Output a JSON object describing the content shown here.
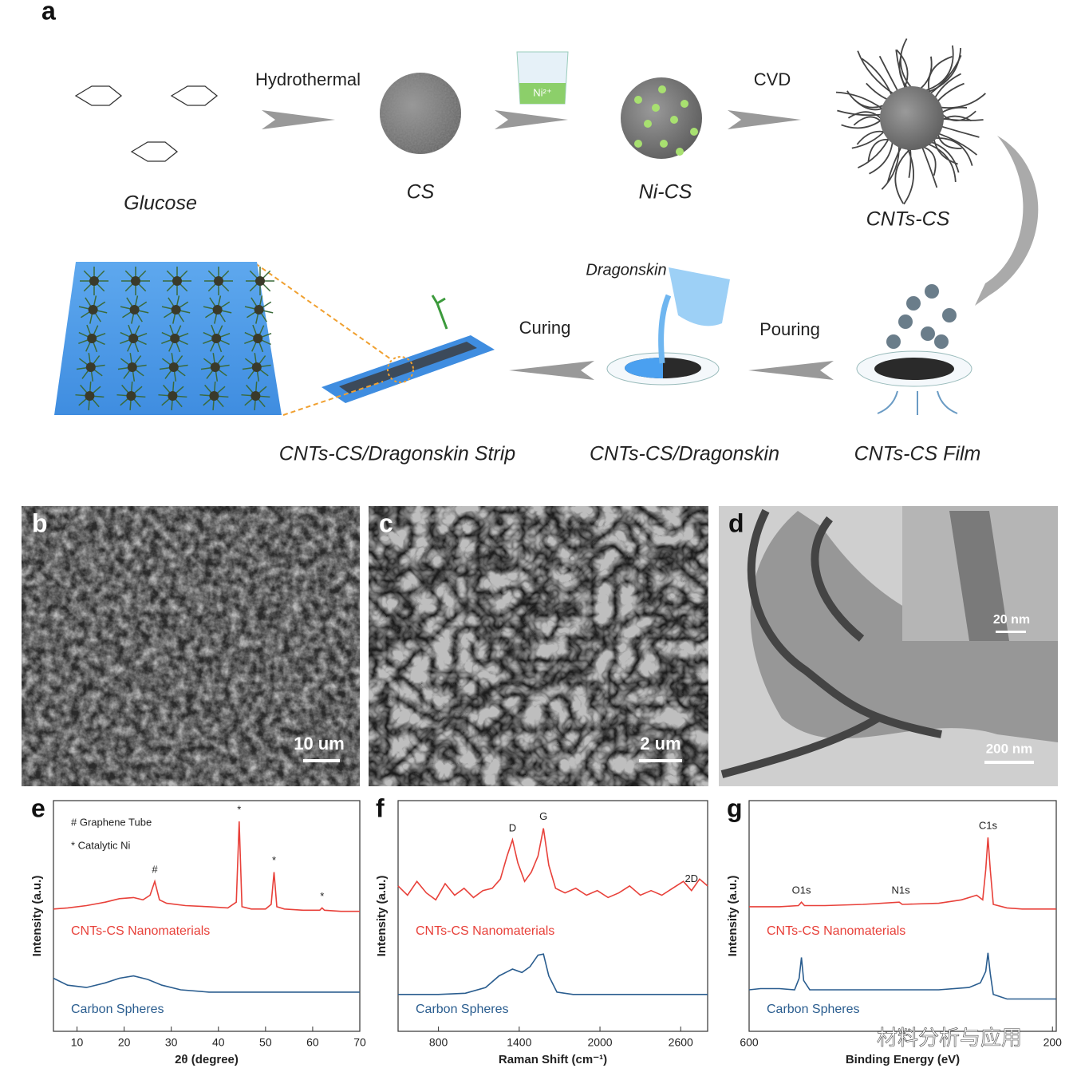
{
  "panel_a": {
    "label": "a",
    "glucose": "Glucose",
    "hydrothermal": "Hydrothermal",
    "cs": "CS",
    "ni_ion": "Ni²⁺",
    "ni_cs": "Ni-CS",
    "cvd": "CVD",
    "cnts_cs": "CNTs-CS",
    "cnts_cs_film": "CNTs-CS Film",
    "pouring": "Pouring",
    "dragonskin": "Dragonskin",
    "composite": "CNTs-CS/Dragonskin",
    "curing": "Curing",
    "strip": "CNTs-CS/Dragonskin Strip"
  },
  "micrographs": [
    {
      "label": "b",
      "scale_bar": "10 um"
    },
    {
      "label": "c",
      "scale_bar": "2 um"
    },
    {
      "label": "d",
      "scale_bar": "200 nm",
      "inset_scale_bar": "20 nm"
    }
  ],
  "watermark": "材料分析与应用",
  "chart_data": [
    {
      "type": "line",
      "panel": "e",
      "xlabel": "2θ (degree)",
      "ylabel": "Intensity (a.u.)",
      "xlim": [
        5,
        70
      ],
      "xticks": [
        10,
        20,
        30,
        40,
        50,
        60,
        70
      ],
      "ylim": [
        0,
        10
      ],
      "legend_notes": [
        "# Graphene Tube",
        "* Catalytic Ni"
      ],
      "annotations": [
        {
          "text": "#",
          "x": 26.5
        },
        {
          "text": "*",
          "x": 44.4
        },
        {
          "text": "*",
          "x": 51.8
        },
        {
          "text": "*",
          "x": 62
        }
      ],
      "series": [
        {
          "name": "CNTs-CS Nanomaterials",
          "color": "#e8413a",
          "x": [
            5,
            8,
            12,
            16,
            19,
            22,
            24,
            25.5,
            26.5,
            27.5,
            29,
            33,
            38,
            42,
            43.8,
            44.4,
            45,
            47,
            50,
            51.2,
            51.8,
            52.4,
            54,
            58,
            61.5,
            62,
            62.5,
            66,
            70
          ],
          "values": [
            5.3,
            5.35,
            5.45,
            5.6,
            5.75,
            5.8,
            5.7,
            5.9,
            6.5,
            5.7,
            5.55,
            5.45,
            5.4,
            5.35,
            5.6,
            9.1,
            5.4,
            5.3,
            5.3,
            5.5,
            6.9,
            5.4,
            5.3,
            5.25,
            5.25,
            5.35,
            5.25,
            5.2,
            5.2
          ]
        },
        {
          "name": "Carbon Spheres",
          "color": "#2a5d8f",
          "x": [
            5,
            8,
            12,
            16,
            19,
            22,
            25,
            28,
            32,
            38,
            45,
            55,
            70
          ],
          "values": [
            2.3,
            2.0,
            1.9,
            2.1,
            2.3,
            2.4,
            2.25,
            2.0,
            1.8,
            1.7,
            1.7,
            1.7,
            1.7
          ]
        }
      ]
    },
    {
      "type": "line",
      "panel": "f",
      "xlabel": "Raman Shift (cm⁻¹)",
      "ylabel": "Intensity (a.u.)",
      "xlim": [
        500,
        2800
      ],
      "xticks": [
        800,
        1400,
        2000,
        2600
      ],
      "ylim": [
        0,
        10
      ],
      "annotations": [
        {
          "text": "D",
          "x": 1350
        },
        {
          "text": "G",
          "x": 1580
        },
        {
          "text": "2D",
          "x": 2680
        }
      ],
      "series": [
        {
          "name": "CNTs-CS Nanomaterials",
          "color": "#e8413a",
          "x": [
            500,
            570,
            640,
            710,
            780,
            850,
            920,
            990,
            1060,
            1130,
            1200,
            1260,
            1310,
            1350,
            1390,
            1440,
            1490,
            1540,
            1580,
            1620,
            1670,
            1740,
            1820,
            1900,
            1980,
            2060,
            2140,
            2220,
            2300,
            2380,
            2460,
            2540,
            2620,
            2680,
            2740,
            2800
          ],
          "values": [
            6.3,
            5.9,
            6.5,
            6.0,
            5.7,
            6.4,
            5.9,
            6.2,
            5.8,
            6.1,
            6.2,
            6.6,
            7.6,
            8.3,
            7.3,
            6.5,
            6.9,
            7.6,
            8.8,
            7.2,
            6.2,
            6.0,
            6.2,
            5.9,
            6.1,
            5.8,
            6.0,
            6.3,
            5.9,
            6.1,
            5.9,
            6.2,
            6.5,
            6.1,
            6.6,
            6.3
          ]
        },
        {
          "name": "Carbon Spheres",
          "color": "#2a5d8f",
          "x": [
            500,
            800,
            1000,
            1150,
            1250,
            1350,
            1420,
            1480,
            1540,
            1580,
            1620,
            1680,
            1800,
            2200,
            2800
          ],
          "values": [
            1.6,
            1.6,
            1.65,
            1.9,
            2.4,
            2.7,
            2.55,
            2.8,
            3.3,
            3.35,
            2.4,
            1.7,
            1.6,
            1.6,
            1.6
          ]
        }
      ]
    },
    {
      "type": "line",
      "panel": "g",
      "xlabel": "Binding Energy (eV)",
      "ylabel": "Intensity (a.u.)",
      "xlim": [
        600,
        195
      ],
      "xticks": [
        600,
        200
      ],
      "ylim": [
        0,
        10
      ],
      "annotations": [
        {
          "text": "O1s",
          "x": 531
        },
        {
          "text": "N1s",
          "x": 400
        },
        {
          "text": "C1s",
          "x": 285
        }
      ],
      "series": [
        {
          "name": "CNTs-CS Nanomaterials",
          "color": "#e8413a",
          "x": [
            600,
            560,
            535,
            531,
            527,
            500,
            450,
            402,
            398,
            350,
            320,
            300,
            292,
            288,
            285,
            282,
            278,
            260,
            240,
            195
          ],
          "values": [
            5.4,
            5.4,
            5.45,
            5.6,
            5.45,
            5.45,
            5.5,
            5.6,
            5.5,
            5.55,
            5.7,
            5.9,
            5.7,
            7.0,
            8.4,
            7.0,
            5.5,
            5.35,
            5.3,
            5.3
          ]
        },
        {
          "name": "Carbon Spheres",
          "color": "#2a5d8f",
          "x": [
            600,
            585,
            560,
            540,
            534,
            531,
            528,
            520,
            450,
            350,
            310,
            295,
            288,
            285,
            282,
            278,
            260,
            195
          ],
          "values": [
            1.8,
            1.85,
            1.85,
            1.8,
            2.3,
            3.2,
            2.2,
            1.8,
            1.8,
            1.8,
            1.9,
            2.1,
            2.6,
            3.4,
            2.5,
            1.6,
            1.4,
            1.4
          ]
        }
      ]
    }
  ]
}
